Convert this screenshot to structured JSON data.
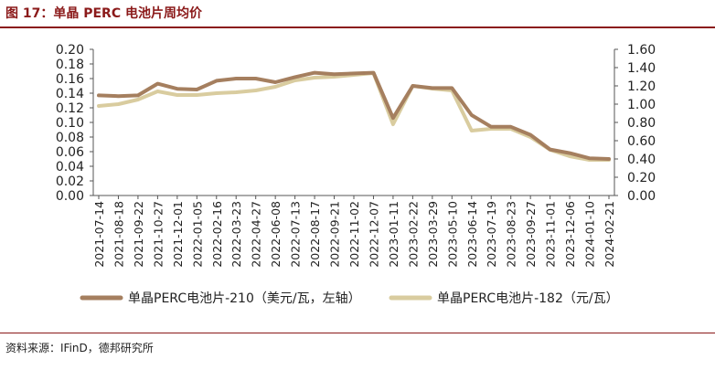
{
  "figure_title": "图 17：单晶 PERC 电池片周均价",
  "source_text": "资料来源：IFinD，德邦研究所",
  "colors": {
    "accent": "#8B1A1A",
    "series_210": "#A57F5F",
    "series_182": "#D9CC9F"
  },
  "chart_data": {
    "type": "line",
    "title": "",
    "x": [
      "2021-07-14",
      "2021-08-18",
      "2021-09-22",
      "2021-10-27",
      "2021-12-01",
      "2022-01-05",
      "2022-02-16",
      "2022-03-23",
      "2022-04-27",
      "2022-06-08",
      "2022-07-13",
      "2022-08-17",
      "2022-09-21",
      "2022-11-02",
      "2022-12-07",
      "2023-01-11",
      "2023-02-22",
      "2023-03-29",
      "2023-05-10",
      "2023-06-14",
      "2023-07-19",
      "2023-08-23",
      "2023-09-27",
      "2023-11-01",
      "2023-12-06",
      "2024-01-10",
      "2024-02-21"
    ],
    "grid": false,
    "legend_position": "bottom",
    "y_left": {
      "ticks": [
        "0.00",
        "0.02",
        "0.04",
        "0.06",
        "0.08",
        "0.10",
        "0.12",
        "0.14",
        "0.16",
        "0.18",
        "0.20"
      ],
      "ylim": [
        0,
        0.2
      ]
    },
    "y_right": {
      "ticks": [
        "0.00",
        "0.20",
        "0.40",
        "0.60",
        "0.80",
        "1.00",
        "1.20",
        "1.40",
        "1.60"
      ],
      "ylim": [
        0,
        1.6
      ]
    },
    "series": [
      {
        "name": "单晶PERC电池片-210（美元/瓦，左轴）",
        "axis": "left",
        "values": [
          0.137,
          0.136,
          0.137,
          0.153,
          0.146,
          0.145,
          0.157,
          0.16,
          0.16,
          0.155,
          0.162,
          0.168,
          0.166,
          0.167,
          0.168,
          0.106,
          0.15,
          0.147,
          0.147,
          0.11,
          0.094,
          0.094,
          0.083,
          0.063,
          0.058,
          0.051,
          0.05
        ]
      },
      {
        "name": "单晶PERC电池片-182（元/瓦）",
        "axis": "right",
        "values": [
          0.98,
          1.0,
          1.05,
          1.14,
          1.1,
          1.1,
          1.12,
          1.13,
          1.15,
          1.19,
          1.26,
          1.29,
          1.3,
          1.32,
          1.34,
          0.78,
          1.2,
          1.17,
          1.15,
          0.71,
          0.73,
          0.73,
          0.64,
          0.5,
          0.43,
          0.39,
          0.39
        ]
      }
    ]
  }
}
